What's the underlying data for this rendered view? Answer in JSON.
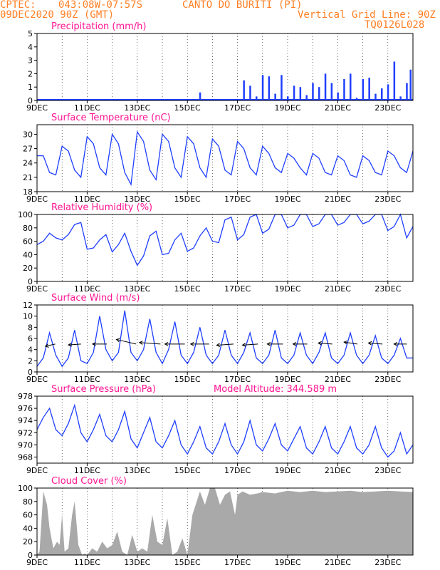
{
  "header": {
    "source": "CPTEC:",
    "coords": "043:08W-07:57S",
    "location": "CANTO DO BURITI (PI)",
    "run": "09DEC2020 90Z (GMT)",
    "grid_note": "Vertical Grid Line: 90Z",
    "model_code": "TQ0126L028"
  },
  "colors": {
    "header": "#ff7f24",
    "title": "#ff1493",
    "series": "#1f3fff",
    "cloud": "#a9a9a9",
    "axis": "#000000"
  },
  "x_axis": {
    "start": "09DEC2020",
    "days": 15,
    "tick_labels": [
      "9DEC",
      "11DEC",
      "13DEC",
      "15DEC",
      "17DEC",
      "19DEC",
      "21DEC",
      "23DEC"
    ],
    "tick_days": [
      0,
      2,
      4,
      6,
      8,
      10,
      12,
      14
    ]
  },
  "chart_data": [
    {
      "id": "precip",
      "type": "bar",
      "title": "Precipitation (mm/h)",
      "ylim": [
        0,
        5
      ],
      "yticks": [
        0,
        1,
        2,
        3,
        4,
        5
      ],
      "x": [
        6.5,
        8.25,
        8.5,
        8.75,
        9.0,
        9.25,
        9.5,
        9.75,
        10.0,
        10.25,
        10.5,
        10.75,
        11.0,
        11.25,
        11.5,
        11.75,
        12.0,
        12.25,
        12.5,
        12.75,
        13.0,
        13.25,
        13.5,
        13.75,
        14.0,
        14.25,
        14.5,
        14.75,
        14.9
      ],
      "values": [
        0.6,
        1.5,
        1.1,
        0.3,
        1.9,
        1.8,
        0.5,
        1.9,
        0.3,
        1.1,
        1.0,
        0.4,
        1.3,
        1.0,
        2.0,
        1.3,
        0.6,
        1.6,
        2.0,
        0.2,
        1.6,
        1.7,
        0.5,
        0.9,
        1.2,
        2.9,
        0.3,
        1.3,
        2.3
      ]
    },
    {
      "id": "temp",
      "type": "line",
      "title": "Surface Temperature (nC)",
      "ylim": [
        18,
        32
      ],
      "yticks": [
        18,
        21,
        24,
        27,
        30
      ],
      "x": [
        0,
        0.25,
        0.5,
        0.75,
        1.0,
        1.25,
        1.5,
        1.75,
        2.0,
        2.25,
        2.5,
        2.75,
        3.0,
        3.25,
        3.5,
        3.75,
        4.0,
        4.25,
        4.5,
        4.75,
        5.0,
        5.25,
        5.5,
        5.75,
        6.0,
        6.25,
        6.5,
        6.75,
        7.0,
        7.25,
        7.5,
        7.75,
        8.0,
        8.25,
        8.5,
        8.75,
        9.0,
        9.25,
        9.5,
        9.75,
        10.0,
        10.25,
        10.5,
        10.75,
        11.0,
        11.25,
        11.5,
        11.75,
        12.0,
        12.25,
        12.5,
        12.75,
        13.0,
        13.25,
        13.5,
        13.75,
        14.0,
        14.25,
        14.5,
        14.75,
        15.0
      ],
      "values": [
        25.5,
        25.5,
        22.0,
        21.5,
        27.5,
        26.5,
        22.5,
        21.0,
        29.5,
        28.0,
        23.0,
        21.5,
        30.0,
        28.0,
        22.0,
        19.5,
        30.5,
        28.5,
        22.5,
        20.5,
        30.0,
        28.5,
        23.0,
        21.0,
        29.5,
        28.0,
        23.0,
        21.0,
        29.0,
        27.5,
        22.5,
        21.5,
        28.5,
        27.0,
        23.0,
        21.5,
        27.5,
        26.0,
        23.0,
        22.0,
        26.0,
        25.0,
        23.0,
        21.5,
        26.0,
        25.0,
        22.0,
        21.5,
        25.5,
        24.5,
        21.5,
        21.0,
        25.5,
        24.5,
        22.0,
        21.5,
        26.5,
        25.5,
        23.0,
        22.0,
        26.5
      ]
    },
    {
      "id": "rh",
      "type": "line",
      "title": "Relative Humidity (%)",
      "ylim": [
        0,
        100
      ],
      "yticks": [
        0,
        20,
        40,
        60,
        80,
        100
      ],
      "x": [
        0,
        0.25,
        0.5,
        0.75,
        1.0,
        1.25,
        1.5,
        1.75,
        2.0,
        2.25,
        2.5,
        2.75,
        3.0,
        3.25,
        3.5,
        3.75,
        4.0,
        4.25,
        4.5,
        4.75,
        5.0,
        5.25,
        5.5,
        5.75,
        6.0,
        6.25,
        6.5,
        6.75,
        7.0,
        7.25,
        7.5,
        7.75,
        8.0,
        8.25,
        8.5,
        8.75,
        9.0,
        9.25,
        9.5,
        9.75,
        10.0,
        10.25,
        10.5,
        10.75,
        11.0,
        11.25,
        11.5,
        11.75,
        12.0,
        12.25,
        12.5,
        12.75,
        13.0,
        13.25,
        13.5,
        13.75,
        14.0,
        14.25,
        14.5,
        14.75,
        15.0
      ],
      "values": [
        55,
        60,
        72,
        65,
        62,
        70,
        85,
        88,
        48,
        50,
        62,
        70,
        44,
        55,
        72,
        45,
        24,
        38,
        68,
        75,
        40,
        42,
        62,
        72,
        45,
        50,
        68,
        80,
        60,
        58,
        92,
        96,
        62,
        70,
        96,
        100,
        72,
        78,
        100,
        100,
        80,
        84,
        100,
        100,
        82,
        86,
        100,
        100,
        84,
        88,
        100,
        100,
        86,
        90,
        100,
        100,
        76,
        82,
        100,
        65,
        82
      ]
    },
    {
      "id": "wind",
      "type": "line",
      "title": "Surface Wind (m/s)",
      "ylim": [
        0,
        12
      ],
      "yticks": [
        0,
        2,
        4,
        6,
        8,
        10,
        12
      ],
      "x": [
        0,
        0.25,
        0.5,
        0.75,
        1.0,
        1.25,
        1.5,
        1.75,
        2.0,
        2.25,
        2.5,
        2.75,
        3.0,
        3.25,
        3.5,
        3.75,
        4.0,
        4.25,
        4.5,
        4.75,
        5.0,
        5.25,
        5.5,
        5.75,
        6.0,
        6.25,
        6.5,
        6.75,
        7.0,
        7.25,
        7.5,
        7.75,
        8.0,
        8.25,
        8.5,
        8.75,
        9.0,
        9.25,
        9.5,
        9.75,
        10.0,
        10.25,
        10.5,
        10.75,
        11.0,
        11.25,
        11.5,
        11.75,
        12.0,
        12.25,
        12.5,
        12.75,
        13.0,
        13.25,
        13.5,
        13.75,
        14.0,
        14.25,
        14.5,
        14.75,
        15.0
      ],
      "values": [
        1.0,
        2.5,
        7.0,
        3.0,
        1.0,
        2.5,
        7.5,
        2.0,
        1.5,
        3.5,
        10.0,
        4.0,
        2.0,
        3.5,
        11.0,
        3.5,
        2.0,
        4.0,
        9.5,
        3.5,
        1.5,
        4.0,
        9.0,
        3.0,
        1.5,
        3.5,
        8.0,
        3.0,
        1.5,
        3.0,
        7.5,
        3.0,
        1.5,
        3.5,
        7.0,
        2.5,
        1.5,
        3.0,
        7.5,
        2.5,
        1.5,
        3.0,
        7.0,
        3.0,
        1.5,
        3.5,
        7.0,
        2.5,
        1.5,
        3.0,
        7.0,
        3.0,
        1.5,
        3.0,
        6.5,
        2.5,
        1.5,
        3.0,
        6.0,
        2.5,
        2.5
      ]
    },
    {
      "id": "pres",
      "type": "line",
      "title": "Surface Pressure (hPa)",
      "annotation": "Model Altitude: 344.589 m",
      "ylim": [
        967,
        978
      ],
      "yticks": [
        968,
        970,
        972,
        974,
        976,
        978
      ],
      "x": [
        0,
        0.25,
        0.5,
        0.75,
        1.0,
        1.25,
        1.5,
        1.75,
        2.0,
        2.25,
        2.5,
        2.75,
        3.0,
        3.25,
        3.5,
        3.75,
        4.0,
        4.25,
        4.5,
        4.75,
        5.0,
        5.25,
        5.5,
        5.75,
        6.0,
        6.25,
        6.5,
        6.75,
        7.0,
        7.25,
        7.5,
        7.75,
        8.0,
        8.25,
        8.5,
        8.75,
        9.0,
        9.25,
        9.5,
        9.75,
        10.0,
        10.25,
        10.5,
        10.75,
        11.0,
        11.25,
        11.5,
        11.75,
        12.0,
        12.25,
        12.5,
        12.75,
        13.0,
        13.25,
        13.5,
        13.75,
        14.0,
        14.25,
        14.5,
        14.75,
        15.0
      ],
      "values": [
        972.5,
        974.5,
        976.0,
        972.5,
        971.5,
        973.5,
        976.5,
        972.0,
        970.5,
        972.5,
        975.0,
        971.5,
        970.5,
        972.5,
        975.5,
        971.0,
        969.5,
        972.0,
        974.5,
        970.5,
        969.5,
        971.5,
        974.0,
        970.0,
        968.5,
        970.5,
        973.0,
        969.5,
        968.5,
        970.5,
        973.5,
        970.0,
        968.5,
        970.5,
        974.0,
        970.0,
        969.0,
        971.0,
        973.5,
        970.0,
        969.0,
        971.0,
        973.0,
        969.5,
        968.5,
        970.5,
        973.0,
        969.5,
        968.5,
        970.5,
        973.0,
        969.5,
        968.5,
        970.0,
        973.0,
        969.5,
        968.0,
        969.0,
        972.0,
        968.5,
        970.0
      ]
    },
    {
      "id": "cloud",
      "type": "area",
      "title": "Cloud Cover (%)",
      "ylim": [
        0,
        100
      ],
      "yticks": [
        0,
        20,
        40,
        60,
        80,
        100
      ],
      "x": [
        0,
        0.1,
        0.25,
        0.4,
        0.5,
        0.65,
        0.8,
        0.9,
        1.0,
        1.1,
        1.25,
        1.4,
        1.5,
        1.65,
        1.8,
        1.9,
        2.0,
        2.2,
        2.4,
        2.6,
        2.8,
        3.0,
        3.2,
        3.4,
        3.6,
        3.8,
        4.0,
        4.2,
        4.4,
        4.6,
        4.8,
        5.0,
        5.2,
        5.4,
        5.6,
        5.8,
        6.0,
        6.2,
        6.5,
        6.7,
        6.9,
        7.1,
        7.3,
        7.5,
        7.7,
        7.9,
        8.0,
        8.2,
        8.5,
        8.8,
        9.0,
        9.5,
        10.0,
        10.5,
        11.0,
        11.5,
        12.0,
        12.5,
        13.0,
        13.5,
        14.0,
        14.5,
        15.0
      ],
      "values": [
        0,
        5,
        95,
        75,
        40,
        10,
        20,
        15,
        60,
        5,
        10,
        60,
        80,
        15,
        0,
        2,
        0,
        10,
        5,
        20,
        10,
        15,
        35,
        5,
        0,
        30,
        5,
        10,
        5,
        60,
        20,
        15,
        55,
        0,
        5,
        25,
        0,
        60,
        95,
        75,
        100,
        100,
        75,
        90,
        95,
        60,
        90,
        95,
        90,
        92,
        94,
        92,
        96,
        94,
        96,
        94,
        95,
        96,
        94,
        95,
        96,
        95,
        94
      ]
    }
  ],
  "wind_vectors": {
    "speed": [
      2.0,
      2.5,
      3.0,
      6.0,
      5.5,
      5.0,
      4.5,
      4.0,
      3.5,
      3.5,
      3.0,
      3.0,
      3.0,
      3.0,
      2.5
    ],
    "direction_deg": [
      60,
      80,
      90,
      120,
      100,
      90,
      90,
      80,
      80,
      90,
      90,
      100,
      110,
      100,
      90
    ]
  }
}
